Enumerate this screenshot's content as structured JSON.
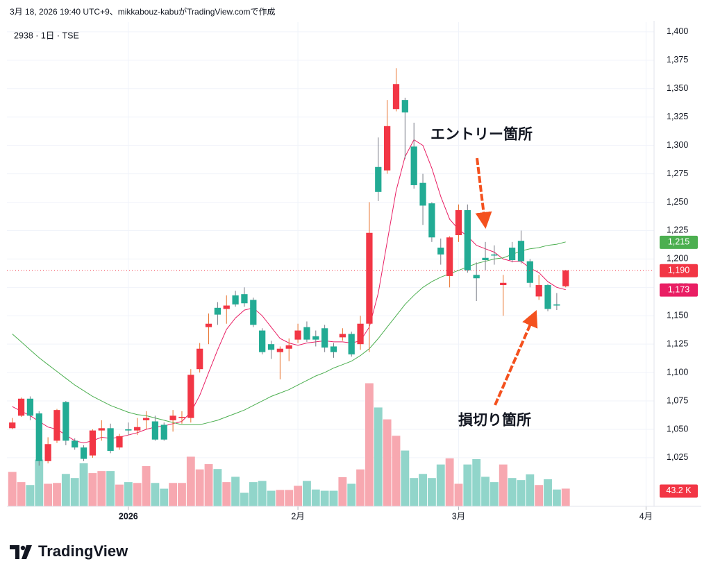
{
  "header": {
    "caption": "3月 18, 2026 19:40 UTC+9、mikkabouz-kabuがTradingView.comで作成",
    "symbol": "2938 · 1日 · TSE"
  },
  "footer": {
    "brand": "TradingView"
  },
  "chart_data": {
    "type": "candlestick",
    "open": [
      1051,
      1062,
      1077,
      1064,
      1022,
      1040,
      1074,
      1040,
      1034,
      1027,
      1049,
      1051,
      1034,
      1050,
      1049,
      1058,
      1057,
      1054,
      1058,
      1060,
      1060,
      1103,
      1140,
      1157,
      1156,
      1168,
      1169,
      1164,
      1137,
      1125,
      1118,
      1121,
      1129,
      1140,
      1132,
      1139,
      1123,
      1131,
      1134,
      1125,
      1143,
      1281,
      1278,
      1332,
      1340,
      1299,
      1267,
      1249,
      1210,
      1185,
      1221,
      1243,
      1186,
      1201,
      1204,
      1177,
      1210,
      1216,
      1198,
      1167,
      1177,
      1160,
      1176
    ],
    "high": [
      1060,
      1078,
      1079,
      1066,
      1043,
      1068,
      1075,
      1042,
      1036,
      1050,
      1058,
      1055,
      1046,
      1056,
      1060,
      1066,
      1062,
      1056,
      1067,
      1066,
      1103,
      1126,
      1152,
      1162,
      1168,
      1172,
      1175,
      1166,
      1139,
      1128,
      1123,
      1130,
      1143,
      1145,
      1137,
      1142,
      1126,
      1139,
      1136,
      1150,
      1250,
      1307,
      1340,
      1368,
      1342,
      1320,
      1275,
      1250,
      1218,
      1220,
      1248,
      1248,
      1197,
      1215,
      1212,
      1186,
      1215,
      1225,
      1200,
      1186,
      1178,
      1170,
      1190
    ],
    "low": [
      1050,
      1061,
      1058,
      1018,
      1020,
      1038,
      1036,
      1032,
      1022,
      1025,
      1040,
      1029,
      1032,
      1045,
      1045,
      1050,
      1040,
      1040,
      1048,
      1055,
      1056,
      1100,
      1125,
      1142,
      1143,
      1158,
      1158,
      1140,
      1116,
      1112,
      1094,
      1110,
      1126,
      1127,
      1123,
      1118,
      1113,
      1128,
      1114,
      1120,
      1118,
      1251,
      1275,
      1330,
      1288,
      1262,
      1230,
      1215,
      1195,
      1175,
      1215,
      1188,
      1163,
      1190,
      1195,
      1150,
      1197,
      1196,
      1175,
      1164,
      1154,
      1155,
      1175
    ],
    "close": [
      1056,
      1077,
      1062,
      1022,
      1037,
      1067,
      1040,
      1034,
      1024,
      1049,
      1051,
      1031,
      1044,
      1049,
      1052,
      1060,
      1041,
      1041,
      1062,
      1061,
      1098,
      1121,
      1143,
      1151,
      1159,
      1160,
      1161,
      1142,
      1118,
      1120,
      1121,
      1124,
      1137,
      1129,
      1129,
      1122,
      1118,
      1134,
      1116,
      1143,
      1223,
      1259,
      1317,
      1354,
      1329,
      1265,
      1247,
      1219,
      1204,
      1219,
      1243,
      1190,
      1183,
      1199,
      1203,
      1179,
      1199,
      1198,
      1179,
      1177,
      1156,
      1159,
      1190
    ],
    "close_label": "1,190",
    "up_color": "#f23645",
    "down_color": "#22ab94",
    "up_wick_color": "#e8702a",
    "down_wick_color": "#787b86",
    "price_line_color": "#f23645",
    "moving_averages": [
      {
        "color": "#e91e63",
        "last_label": "1,173",
        "values": [
          1070,
          1066,
          1062,
          1057,
          1052,
          1050,
          1045,
          1040,
          1038,
          1040,
          1043,
          1042,
          1043,
          1045,
          1047,
          1050,
          1052,
          1053,
          1055,
          1057,
          1065,
          1080,
          1100,
          1120,
          1138,
          1148,
          1155,
          1157,
          1150,
          1140,
          1130,
          1126,
          1124,
          1126,
          1127,
          1128,
          1127,
          1127,
          1126,
          1128,
          1140,
          1170,
          1215,
          1260,
          1290,
          1305,
          1300,
          1280,
          1255,
          1235,
          1226,
          1220,
          1212,
          1209,
          1206,
          1200,
          1198,
          1198,
          1192,
          1188,
          1180,
          1175,
          1173
        ]
      },
      {
        "color": "#4caf50",
        "last_label": "1,215",
        "values": [
          1134,
          1127,
          1120,
          1113,
          1107,
          1101,
          1095,
          1089,
          1084,
          1079,
          1075,
          1071,
          1068,
          1065,
          1063,
          1062,
          1060,
          1058,
          1056,
          1054,
          1054,
          1054,
          1056,
          1058,
          1061,
          1064,
          1067,
          1071,
          1075,
          1079,
          1082,
          1085,
          1089,
          1093,
          1097,
          1100,
          1104,
          1107,
          1110,
          1115,
          1121,
          1130,
          1140,
          1150,
          1160,
          1168,
          1175,
          1180,
          1184,
          1187,
          1190,
          1193,
          1196,
          1198,
          1200,
          1201,
          1204,
          1207,
          1209,
          1210,
          1212,
          1213,
          1215
        ]
      }
    ],
    "volume": {
      "values": [
        84000,
        59000,
        52000,
        114000,
        55000,
        57000,
        79000,
        69000,
        105000,
        81000,
        86000,
        86000,
        53000,
        59000,
        57000,
        98000,
        57000,
        43000,
        57000,
        57000,
        121000,
        90000,
        103000,
        91000,
        59000,
        72000,
        33000,
        59000,
        62000,
        38000,
        40000,
        40000,
        50000,
        62000,
        41000,
        38000,
        38000,
        71000,
        55000,
        90000,
        300000,
        241000,
        212000,
        172000,
        136000,
        69000,
        79000,
        69000,
        102000,
        117000,
        55000,
        102000,
        115000,
        72000,
        59000,
        102000,
        69000,
        64000,
        78000,
        52000,
        66000,
        41000,
        43200
      ],
      "value_labels": [
        null,
        null,
        null,
        null,
        null,
        null,
        null,
        null,
        null,
        null,
        null,
        null,
        null,
        null,
        null,
        null,
        null,
        null,
        null,
        null,
        null,
        null,
        null,
        null,
        null,
        null,
        null,
        null,
        null,
        null,
        null,
        null,
        null,
        null,
        null,
        null,
        null,
        null,
        null,
        null,
        null,
        null,
        null,
        null,
        null,
        null,
        null,
        null,
        null,
        null,
        null,
        null,
        null,
        null,
        null,
        null,
        null,
        null,
        null,
        null,
        null,
        null,
        "43.2 K"
      ],
      "ylim": [
        0,
        1180000
      ],
      "up_color": "#f7a8b0",
      "down_color": "#91d5ca"
    },
    "ylim": [
      982.2,
      1408.5
    ],
    "yticks": [
      {
        "value": 1025,
        "label": "1,025"
      },
      {
        "value": 1050,
        "label": "1,050"
      },
      {
        "value": 1075,
        "label": "1,075"
      },
      {
        "value": 1100,
        "label": "1,100"
      },
      {
        "value": 1125,
        "label": "1,125"
      },
      {
        "value": 1150,
        "label": "1,150"
      },
      {
        "value": 1175,
        "label": "1,175"
      },
      {
        "value": 1200,
        "label": "1,200"
      },
      {
        "value": 1225,
        "label": "1,225"
      },
      {
        "value": 1250,
        "label": "1,250"
      },
      {
        "value": 1275,
        "label": "1,275"
      },
      {
        "value": 1300,
        "label": "1,300"
      },
      {
        "value": 1325,
        "label": "1,325"
      },
      {
        "value": 1350,
        "label": "1,350"
      },
      {
        "value": 1375,
        "label": "1,375"
      },
      {
        "value": 1400,
        "label": "1,400"
      }
    ],
    "xlim": [
      -0.6,
      71.9
    ],
    "xticks": [
      {
        "value": 13,
        "label": "2026"
      },
      {
        "value": 32,
        "label": "2月"
      },
      {
        "value": 50,
        "label": "3月"
      },
      {
        "value": 71,
        "label": "4月"
      }
    ],
    "grid": true,
    "annotations": [
      {
        "text": "エントリー箇所",
        "color": "#f4511e"
      },
      {
        "text": "損切り箇所",
        "color": "#f4511e"
      }
    ]
  }
}
